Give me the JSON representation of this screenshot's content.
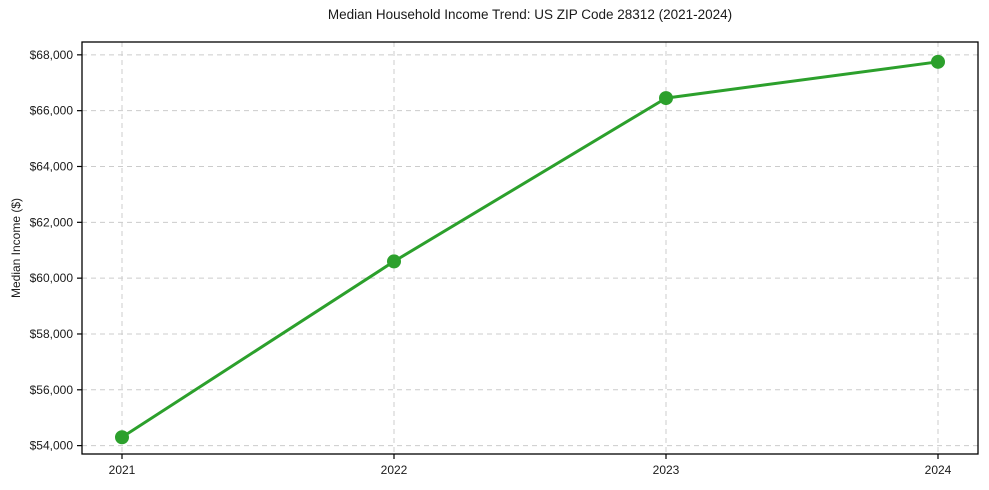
{
  "chart_data": {
    "type": "line",
    "title": "Median Household Income Trend: US ZIP Code 28312 (2021-2024)",
    "xlabel": "",
    "ylabel": "Median Income ($)",
    "categories": [
      "2021",
      "2022",
      "2023",
      "2024"
    ],
    "values": [
      54300,
      60600,
      66450,
      67750
    ],
    "yticks": [
      54000,
      56000,
      58000,
      60000,
      62000,
      64000,
      66000,
      68000
    ],
    "ytick_labels": [
      "$54,000",
      "$56,000",
      "$58,000",
      "$60,000",
      "$62,000",
      "$64,000",
      "$66,000",
      "$68,000"
    ],
    "ylim": [
      53700,
      68460
    ],
    "grid": true,
    "grid_style": "dashed",
    "legend": "none",
    "line_color": "#2ca02c",
    "marker": "circle",
    "grid_color": "#cccccc",
    "axes_color": "#000000",
    "text_color": "#1a1a1a",
    "background_color": "#ffffff"
  }
}
